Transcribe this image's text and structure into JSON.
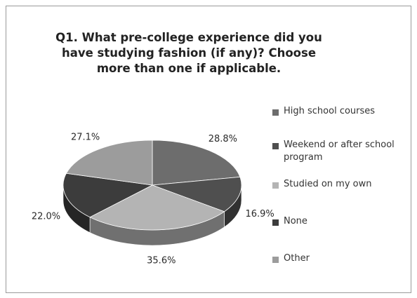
{
  "chart_data": {
    "type": "pie",
    "title": "Q1.  What pre-college experience did you have studying fashion (if any)?  Choose more than one if applicable.",
    "categories": [
      "High school courses",
      "Weekend or after school program",
      "Studied on my own",
      "None",
      "Other"
    ],
    "values": [
      28.8,
      16.9,
      35.6,
      22.0,
      27.1
    ],
    "data_labels": [
      "28.8%",
      "16.9%",
      "35.6%",
      "22.0%",
      "27.1%"
    ],
    "colors": [
      "#6d6d6d",
      "#4f4f4f",
      "#b4b4b4",
      "#3c3c3c",
      "#9c9c9c"
    ],
    "style": "3d-pie",
    "legend_position": "right"
  }
}
